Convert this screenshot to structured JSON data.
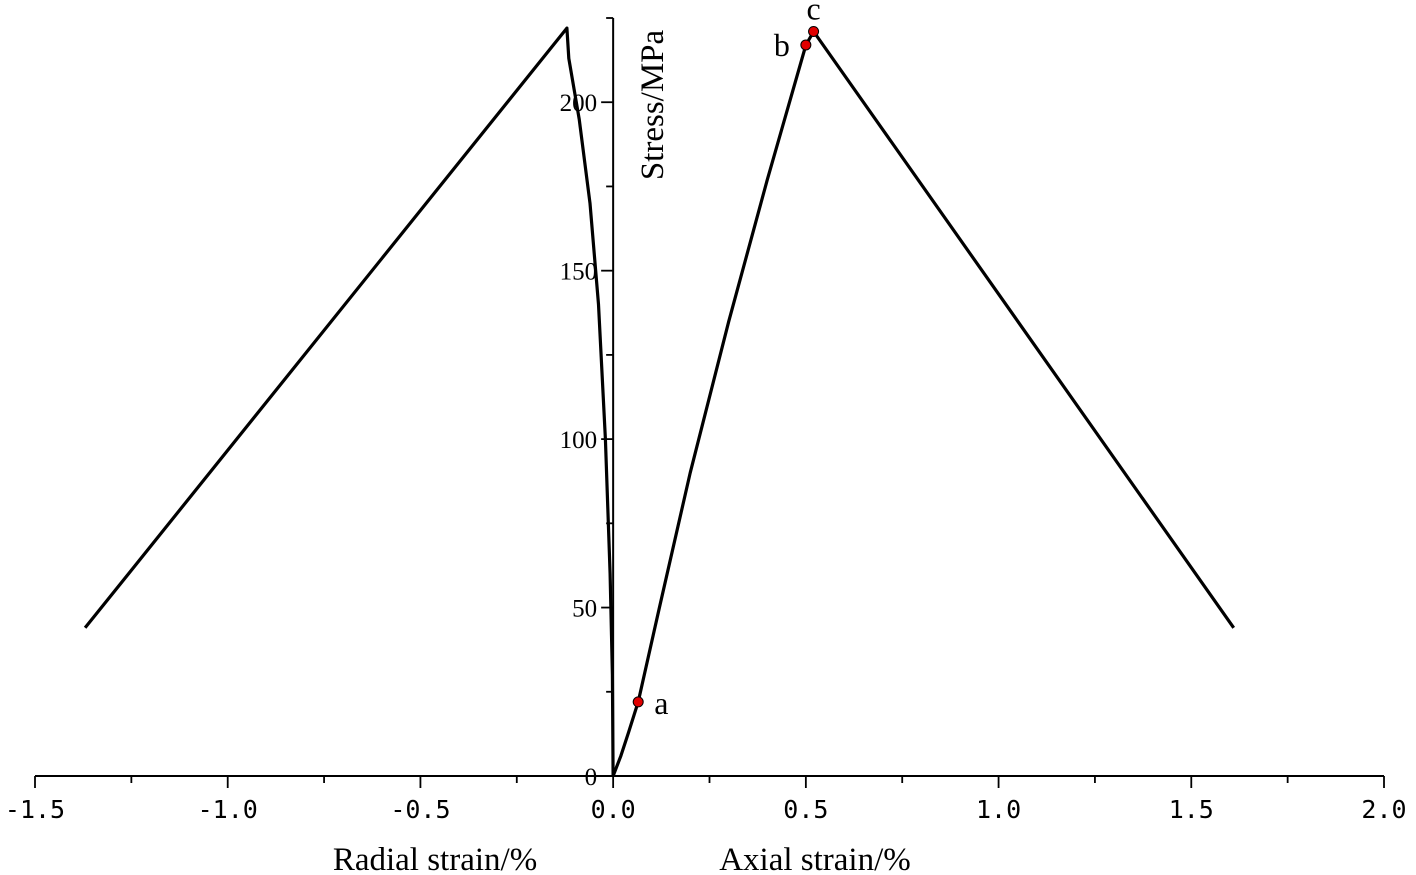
{
  "chart_data": {
    "type": "line",
    "title": "",
    "xlabel_left": "Radial strain/%",
    "xlabel_right": "Axial strain/%",
    "ylabel": "Stress/MPa",
    "xlim": [
      -1.5,
      2.0
    ],
    "ylim": [
      0,
      225
    ],
    "x_ticks": [
      -1.5,
      -1.0,
      -0.5,
      0.0,
      0.5,
      1.0,
      1.5,
      2.0
    ],
    "x_tick_labels": [
      "-1.5",
      "-1.0",
      "-0.5",
      "0.0",
      "0.5",
      "1.0",
      "1.5",
      "2.0"
    ],
    "y_ticks": [
      0,
      50,
      100,
      150,
      200
    ],
    "y_tick_labels": [
      "0",
      "50",
      "100",
      "150",
      "200"
    ],
    "grid": false,
    "series": [
      {
        "values": [
          {
            "x": 0.0,
            "y": 0
          },
          {
            "x": -0.002,
            "y": 30
          },
          {
            "x": -0.008,
            "y": 60
          },
          {
            "x": -0.02,
            "y": 100
          },
          {
            "x": -0.038,
            "y": 140
          },
          {
            "x": -0.06,
            "y": 170
          },
          {
            "x": -0.088,
            "y": 195
          },
          {
            "x": -0.115,
            "y": 213
          },
          {
            "x": -0.12,
            "y": 222
          },
          {
            "x": -1.37,
            "y": 44
          }
        ]
      },
      {
        "values": [
          {
            "x": 0.0,
            "y": 0
          },
          {
            "x": 0.02,
            "y": 6
          },
          {
            "x": 0.04,
            "y": 13
          },
          {
            "x": 0.065,
            "y": 22
          },
          {
            "x": 0.12,
            "y": 50
          },
          {
            "x": 0.2,
            "y": 90
          },
          {
            "x": 0.3,
            "y": 135
          },
          {
            "x": 0.4,
            "y": 177
          },
          {
            "x": 0.5,
            "y": 217
          },
          {
            "x": 0.52,
            "y": 221
          },
          {
            "x": 1.61,
            "y": 44
          }
        ]
      }
    ],
    "annotations": [
      {
        "label": "a",
        "x": 0.065,
        "y": 22,
        "color": "#e00000"
      },
      {
        "label": "b",
        "x": 0.5,
        "y": 217,
        "color": "#e00000"
      },
      {
        "label": "c",
        "x": 0.52,
        "y": 221,
        "color": "#e00000"
      }
    ]
  }
}
